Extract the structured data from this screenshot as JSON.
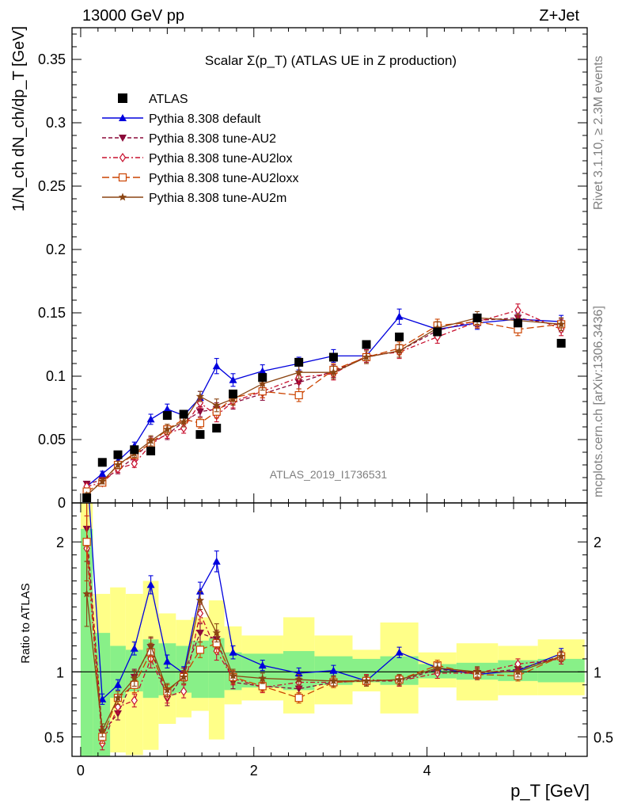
{
  "header": {
    "energy": "13000 GeV pp",
    "process": "Z+Jet"
  },
  "side": {
    "rivet": "Rivet 3.1.10, ≥ 2.3M events",
    "mcplots": "mcplots.cern.ch [arXiv:1306.3436]"
  },
  "chart_data": [
    {
      "type": "line",
      "title": "Scalar Σ(p_T) (ATLAS UE in Z production)",
      "ylabel": "1/N_ch dN_ch/dp_T [GeV]",
      "watermark": "ATLAS_2019_I1736531",
      "xlim": [
        -0.1,
        5.85
      ],
      "ylim": [
        0,
        0.375
      ],
      "yticks": [
        0,
        0.05,
        0.1,
        0.15,
        0.2,
        0.25,
        0.3,
        0.35
      ],
      "ytick_labels": [
        "0",
        "0.05",
        "0.1",
        "0.15",
        "0.2",
        "0.25",
        "0.3",
        "0.35"
      ],
      "legend_position": "top-left",
      "data": {
        "name": "ATLAS",
        "x": [
          0.07,
          0.25,
          0.43,
          0.62,
          0.81,
          1.0,
          1.19,
          1.38,
          1.57,
          1.76,
          2.1,
          2.52,
          2.92,
          3.3,
          3.68,
          4.12,
          4.58,
          5.05,
          5.55
        ],
        "y": [
          0.004,
          0.032,
          0.038,
          0.042,
          0.041,
          0.069,
          0.07,
          0.054,
          0.059,
          0.086,
          0.099,
          0.111,
          0.115,
          0.125,
          0.131,
          0.135,
          0.146,
          0.142,
          0.126
        ]
      },
      "series": [
        {
          "name": "Pythia 8.308 default",
          "color": "#0000dd",
          "style": "solid",
          "marker": "triangle-up",
          "x": [
            0.07,
            0.25,
            0.43,
            0.62,
            0.81,
            1.0,
            1.19,
            1.38,
            1.57,
            1.76,
            2.1,
            2.52,
            2.92,
            3.3,
            3.68,
            4.12,
            4.58,
            5.05,
            5.55
          ],
          "y": [
            0.013,
            0.023,
            0.033,
            0.045,
            0.066,
            0.074,
            0.069,
            0.083,
            0.108,
            0.097,
            0.104,
            0.11,
            0.116,
            0.116,
            0.147,
            0.137,
            0.142,
            0.145,
            0.143
          ],
          "err": [
            0.002,
            0.002,
            0.003,
            0.003,
            0.004,
            0.004,
            0.004,
            0.005,
            0.006,
            0.005,
            0.005,
            0.005,
            0.005,
            0.005,
            0.006,
            0.005,
            0.005,
            0.005,
            0.005
          ]
        },
        {
          "name": "Pythia 8.308 tune-AU2",
          "color": "#8b0a3a",
          "style": "dash",
          "marker": "triangle-down",
          "x": [
            0.07,
            0.25,
            0.43,
            0.62,
            0.81,
            1.0,
            1.19,
            1.38,
            1.57,
            1.76,
            2.1,
            2.52,
            2.92,
            3.3,
            3.68,
            4.12,
            4.58,
            5.05,
            5.55
          ],
          "y": [
            0.015,
            0.018,
            0.026,
            0.036,
            0.048,
            0.054,
            0.064,
            0.072,
            0.074,
            0.079,
            0.086,
            0.095,
            0.104,
            0.115,
            0.12,
            0.136,
            0.144,
            0.146,
            0.14
          ],
          "err": [
            0.002,
            0.002,
            0.003,
            0.003,
            0.004,
            0.004,
            0.004,
            0.004,
            0.005,
            0.005,
            0.005,
            0.005,
            0.005,
            0.005,
            0.005,
            0.005,
            0.005,
            0.005,
            0.005
          ]
        },
        {
          "name": "Pythia 8.308 tune-AU2lox",
          "color": "#c8102e",
          "style": "dashdot",
          "marker": "diamond-open",
          "x": [
            0.07,
            0.25,
            0.43,
            0.62,
            0.81,
            1.0,
            1.19,
            1.38,
            1.57,
            1.76,
            2.1,
            2.52,
            2.92,
            3.3,
            3.68,
            4.12,
            4.58,
            5.05,
            5.55
          ],
          "y": [
            0.013,
            0.016,
            0.027,
            0.031,
            0.046,
            0.055,
            0.059,
            0.079,
            0.069,
            0.08,
            0.088,
            0.099,
            0.102,
            0.116,
            0.119,
            0.131,
            0.143,
            0.152,
            0.137
          ],
          "err": [
            0.002,
            0.002,
            0.003,
            0.003,
            0.004,
            0.004,
            0.004,
            0.004,
            0.005,
            0.005,
            0.005,
            0.005,
            0.005,
            0.005,
            0.005,
            0.005,
            0.005,
            0.005,
            0.005
          ]
        },
        {
          "name": "Pythia 8.308 tune-AU2loxx",
          "color": "#cc4400",
          "style": "longdash",
          "marker": "square-open",
          "x": [
            0.07,
            0.25,
            0.43,
            0.62,
            0.81,
            1.0,
            1.19,
            1.38,
            1.57,
            1.76,
            2.1,
            2.52,
            2.92,
            3.3,
            3.68,
            4.12,
            4.58,
            5.05,
            5.55
          ],
          "y": [
            0.009,
            0.016,
            0.03,
            0.038,
            0.047,
            0.058,
            0.066,
            0.063,
            0.072,
            0.083,
            0.088,
            0.085,
            0.105,
            0.115,
            0.122,
            0.14,
            0.143,
            0.137,
            0.141
          ],
          "err": [
            0.002,
            0.002,
            0.003,
            0.003,
            0.004,
            0.004,
            0.004,
            0.004,
            0.005,
            0.005,
            0.005,
            0.005,
            0.005,
            0.005,
            0.005,
            0.005,
            0.005,
            0.005,
            0.005
          ]
        },
        {
          "name": "Pythia 8.308 tune-AU2m",
          "color": "#8b4513",
          "style": "solid",
          "marker": "star",
          "x": [
            0.07,
            0.25,
            0.43,
            0.62,
            0.81,
            1.0,
            1.19,
            1.38,
            1.57,
            1.76,
            2.1,
            2.52,
            2.92,
            3.3,
            3.68,
            4.12,
            4.58,
            5.05,
            5.55
          ],
          "y": [
            0.006,
            0.017,
            0.03,
            0.039,
            0.049,
            0.058,
            0.064,
            0.084,
            0.077,
            0.082,
            0.094,
            0.103,
            0.103,
            0.115,
            0.12,
            0.138,
            0.146,
            0.144,
            0.141
          ],
          "err": [
            0.002,
            0.002,
            0.003,
            0.003,
            0.004,
            0.004,
            0.004,
            0.004,
            0.005,
            0.005,
            0.005,
            0.005,
            0.005,
            0.005,
            0.005,
            0.005,
            0.005,
            0.005,
            0.005
          ]
        }
      ]
    },
    {
      "type": "line",
      "ylabel": "Ratio to ATLAS",
      "xlabel": "p_T [GeV]",
      "xlim": [
        -0.1,
        5.85
      ],
      "ylim": [
        0.35,
        2.3
      ],
      "yticks": [
        0.5,
        1,
        2
      ],
      "ytick_labels": [
        "0.5",
        "1",
        "2"
      ],
      "xticks": [
        0,
        2,
        4
      ],
      "xtick_labels": [
        "0",
        "2",
        "4"
      ],
      "bands": {
        "edges": [
          0,
          0.14,
          0.34,
          0.52,
          0.72,
          0.9,
          1.1,
          1.28,
          1.48,
          1.66,
          1.86,
          2.34,
          2.7,
          3.14,
          3.46,
          3.9,
          4.34,
          4.82,
          5.28,
          5.82
        ],
        "green_low": [
          0.35,
          0.35,
          0.8,
          0.85,
          0.8,
          0.82,
          0.84,
          0.8,
          0.8,
          0.86,
          0.88,
          0.86,
          0.9,
          0.92,
          0.9,
          0.95,
          0.94,
          0.93,
          0.92
        ],
        "green_high": [
          2.1,
          1.3,
          1.2,
          1.17,
          1.25,
          1.22,
          1.2,
          1.24,
          1.26,
          1.15,
          1.14,
          1.16,
          1.12,
          1.1,
          1.12,
          1.06,
          1.07,
          1.09,
          1.1
        ],
        "yellow_low": [
          0.35,
          0.35,
          0.38,
          0.36,
          0.4,
          0.6,
          0.65,
          0.7,
          0.48,
          0.75,
          0.78,
          0.68,
          0.75,
          0.85,
          0.68,
          0.88,
          0.78,
          0.82,
          0.82
        ],
        "yellow_high": [
          2.3,
          1.6,
          1.65,
          1.6,
          1.7,
          1.45,
          1.4,
          1.42,
          1.55,
          1.35,
          1.28,
          1.42,
          1.28,
          1.17,
          1.38,
          1.15,
          1.22,
          1.2,
          1.25
        ]
      },
      "series": [
        {
          "name": "Pythia 8.308 default",
          "x": [
            0.07,
            0.25,
            0.43,
            0.62,
            0.81,
            1.0,
            1.19,
            1.38,
            1.57,
            1.76,
            2.1,
            2.52,
            2.92,
            3.3,
            3.68,
            4.12,
            4.58,
            5.05,
            5.55
          ],
          "y": [
            2.6,
            0.79,
            0.9,
            1.18,
            1.67,
            1.08,
            0.99,
            1.62,
            1.85,
            1.15,
            1.05,
            0.99,
            1.01,
            0.93,
            1.15,
            1.03,
            0.98,
            1.01,
            1.14
          ],
          "err": [
            0.3,
            0.04,
            0.04,
            0.05,
            0.07,
            0.05,
            0.05,
            0.07,
            0.08,
            0.05,
            0.04,
            0.04,
            0.04,
            0.04,
            0.04,
            0.04,
            0.04,
            0.04,
            0.04
          ]
        },
        {
          "name": "Pythia 8.308 tune-AU2",
          "x": [
            0.07,
            0.25,
            0.43,
            0.62,
            0.81,
            1.0,
            1.19,
            1.38,
            1.57,
            1.76,
            2.1,
            2.52,
            2.92,
            3.3,
            3.68,
            4.12,
            4.58,
            5.05,
            5.55
          ],
          "y": [
            2.1,
            0.53,
            0.68,
            0.96,
            1.19,
            0.79,
            0.98,
            1.3,
            1.25,
            0.92,
            0.89,
            0.87,
            0.92,
            0.93,
            0.93,
            1.02,
            0.99,
            1.02,
            1.12
          ],
          "err": [
            0.25,
            0.05,
            0.05,
            0.06,
            0.07,
            0.05,
            0.05,
            0.07,
            0.07,
            0.05,
            0.04,
            0.04,
            0.04,
            0.04,
            0.04,
            0.04,
            0.04,
            0.04,
            0.04
          ]
        },
        {
          "name": "Pythia 8.308 tune-AU2lox",
          "x": [
            0.07,
            0.25,
            0.43,
            0.62,
            0.81,
            1.0,
            1.19,
            1.38,
            1.57,
            1.76,
            2.1,
            2.52,
            2.92,
            3.3,
            3.68,
            4.12,
            4.58,
            5.05,
            5.55
          ],
          "y": [
            1.95,
            0.45,
            0.73,
            0.78,
            1.1,
            0.81,
            0.85,
            1.45,
            1.16,
            0.95,
            0.88,
            0.92,
            0.92,
            0.94,
            0.93,
            0.99,
            0.99,
            1.06,
            1.1
          ],
          "err": [
            0.25,
            0.05,
            0.05,
            0.05,
            0.07,
            0.05,
            0.05,
            0.07,
            0.07,
            0.05,
            0.04,
            0.04,
            0.04,
            0.04,
            0.04,
            0.04,
            0.04,
            0.04,
            0.04
          ]
        },
        {
          "name": "Pythia 8.308 tune-AU2loxx",
          "x": [
            0.07,
            0.25,
            0.43,
            0.62,
            0.81,
            1.0,
            1.19,
            1.38,
            1.57,
            1.76,
            2.1,
            2.52,
            2.92,
            3.3,
            3.68,
            4.12,
            4.58,
            5.05,
            5.55
          ],
          "y": [
            2.0,
            0.5,
            0.8,
            0.9,
            1.15,
            0.85,
            0.96,
            1.17,
            1.22,
            0.96,
            0.89,
            0.8,
            0.92,
            0.93,
            0.94,
            1.05,
            0.98,
            0.97,
            1.12
          ],
          "err": [
            0.3,
            0.05,
            0.05,
            0.06,
            0.07,
            0.05,
            0.05,
            0.06,
            0.07,
            0.05,
            0.04,
            0.04,
            0.04,
            0.04,
            0.04,
            0.04,
            0.04,
            0.04,
            0.04
          ]
        },
        {
          "name": "Pythia 8.308 tune-AU2m",
          "x": [
            0.07,
            0.25,
            0.43,
            0.62,
            0.81,
            1.0,
            1.19,
            1.38,
            1.57,
            1.76,
            2.1,
            2.52,
            2.92,
            3.3,
            3.68,
            4.12,
            4.58,
            5.05,
            5.55
          ],
          "y": [
            1.6,
            0.55,
            0.8,
            0.95,
            1.2,
            0.86,
            0.96,
            1.55,
            1.3,
            0.97,
            0.95,
            0.94,
            0.93,
            0.93,
            0.94,
            1.03,
            1.0,
            1.0,
            1.12
          ],
          "err": [
            0.25,
            0.05,
            0.05,
            0.06,
            0.07,
            0.05,
            0.05,
            0.07,
            0.07,
            0.05,
            0.04,
            0.04,
            0.04,
            0.04,
            0.04,
            0.04,
            0.04,
            0.04,
            0.04
          ]
        }
      ]
    }
  ]
}
